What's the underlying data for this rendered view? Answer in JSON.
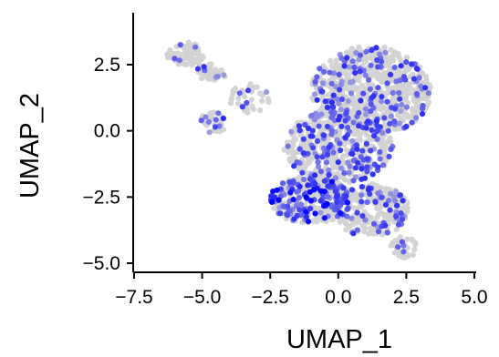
{
  "chart_data": {
    "type": "scatter",
    "xlabel": "UMAP_1",
    "ylabel": "UMAP_2",
    "xlim": [
      -7.5,
      5.2
    ],
    "ylim": [
      -5.3,
      4.3
    ],
    "x_ticks": [
      -7.5,
      -5.0,
      -2.5,
      0.0,
      2.5,
      5.0
    ],
    "x_tick_labels": [
      "−7.5",
      "−5.0",
      "−2.5",
      "0.0",
      "2.5",
      "5.0"
    ],
    "y_ticks": [
      -5.0,
      -2.5,
      0.0,
      2.5
    ],
    "y_tick_labels": [
      "−5.0",
      "−2.5",
      "0.0",
      "2.5"
    ],
    "grid": false,
    "legend": "none",
    "colors": {
      "low": "#d3d3d3",
      "high": "#0000ff",
      "axis": "#000000"
    },
    "clusters": [
      {
        "region": "left-arm",
        "cx": -5.6,
        "cy": 2.9,
        "rx": 0.7,
        "ry": 0.45,
        "n": 70,
        "expr": 0.05
      },
      {
        "region": "left-arm-tail",
        "cx": -4.7,
        "cy": 2.2,
        "rx": 0.6,
        "ry": 0.35,
        "n": 45,
        "expr": 0.12
      },
      {
        "region": "left-loop",
        "cx": -4.6,
        "cy": 0.3,
        "rx": 0.5,
        "ry": 0.4,
        "n": 35,
        "expr": 0.15
      },
      {
        "region": "bridge",
        "cx": -3.2,
        "cy": 1.2,
        "rx": 0.8,
        "ry": 0.6,
        "n": 35,
        "expr": 0.08
      },
      {
        "region": "main-upper",
        "cx": 1.2,
        "cy": 1.5,
        "rx": 2.2,
        "ry": 1.7,
        "n": 750,
        "expr": 0.22
      },
      {
        "region": "main-center",
        "cx": 0.0,
        "cy": -0.6,
        "rx": 2.0,
        "ry": 1.4,
        "n": 500,
        "expr": 0.25
      },
      {
        "region": "main-lower-left",
        "cx": -1.0,
        "cy": -2.6,
        "rx": 1.5,
        "ry": 0.9,
        "n": 330,
        "expr": 0.35
      },
      {
        "region": "main-lower",
        "cx": 1.2,
        "cy": -3.0,
        "rx": 1.4,
        "ry": 1.0,
        "n": 280,
        "expr": 0.22
      },
      {
        "region": "bottom-tail",
        "cx": 2.4,
        "cy": -4.4,
        "rx": 0.5,
        "ry": 0.4,
        "n": 45,
        "expr": 0.1
      }
    ]
  }
}
